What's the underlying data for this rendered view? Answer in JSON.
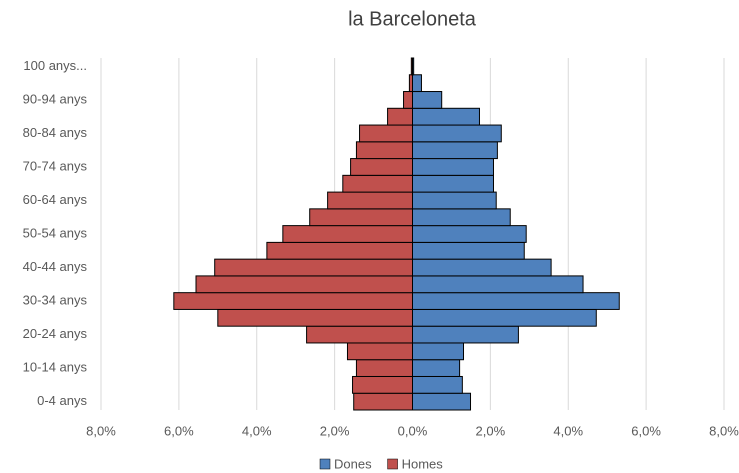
{
  "chart_data": {
    "type": "pyramid",
    "title": "la Barceloneta",
    "categories": [
      "0-4 anys",
      null,
      "10-14 anys",
      null,
      "20-24 anys",
      null,
      "30-34 anys",
      null,
      "40-44 anys",
      null,
      "50-54 anys",
      null,
      "60-64 anys",
      null,
      "70-74 anys",
      null,
      "80-84 anys",
      null,
      "90-94 anys",
      null,
      "100 anys..."
    ],
    "series": [
      {
        "name": "Dones",
        "color": "#4f81bd",
        "values": [
          1.49,
          1.28,
          1.21,
          1.31,
          2.72,
          4.72,
          5.31,
          4.38,
          3.56,
          2.87,
          2.92,
          2.51,
          2.15,
          2.08,
          2.08,
          2.18,
          2.28,
          1.72,
          0.75,
          0.23,
          0.03
        ]
      },
      {
        "name": "Homes",
        "color": "#c0504d",
        "values": [
          -1.51,
          -1.54,
          -1.44,
          -1.67,
          -2.72,
          -5.0,
          -6.13,
          -5.56,
          -5.08,
          -3.74,
          -3.33,
          -2.64,
          -2.18,
          -1.79,
          -1.59,
          -1.44,
          -1.36,
          -0.64,
          -0.23,
          -0.08,
          -0.03
        ]
      }
    ],
    "xlim": [
      -8,
      8
    ],
    "xticks": [
      {
        "value": -8,
        "label": "8,0%"
      },
      {
        "value": -6,
        "label": "6,0%"
      },
      {
        "value": -4,
        "label": "4,0%"
      },
      {
        "value": -2,
        "label": "2,0%"
      },
      {
        "value": 0,
        "label": "0,0%"
      },
      {
        "value": 2,
        "label": "2,0%"
      },
      {
        "value": 4,
        "label": "4,0%"
      },
      {
        "value": 6,
        "label": "6,0%"
      },
      {
        "value": 8,
        "label": "8,0%"
      }
    ],
    "grid": true,
    "legend": "bottom"
  }
}
